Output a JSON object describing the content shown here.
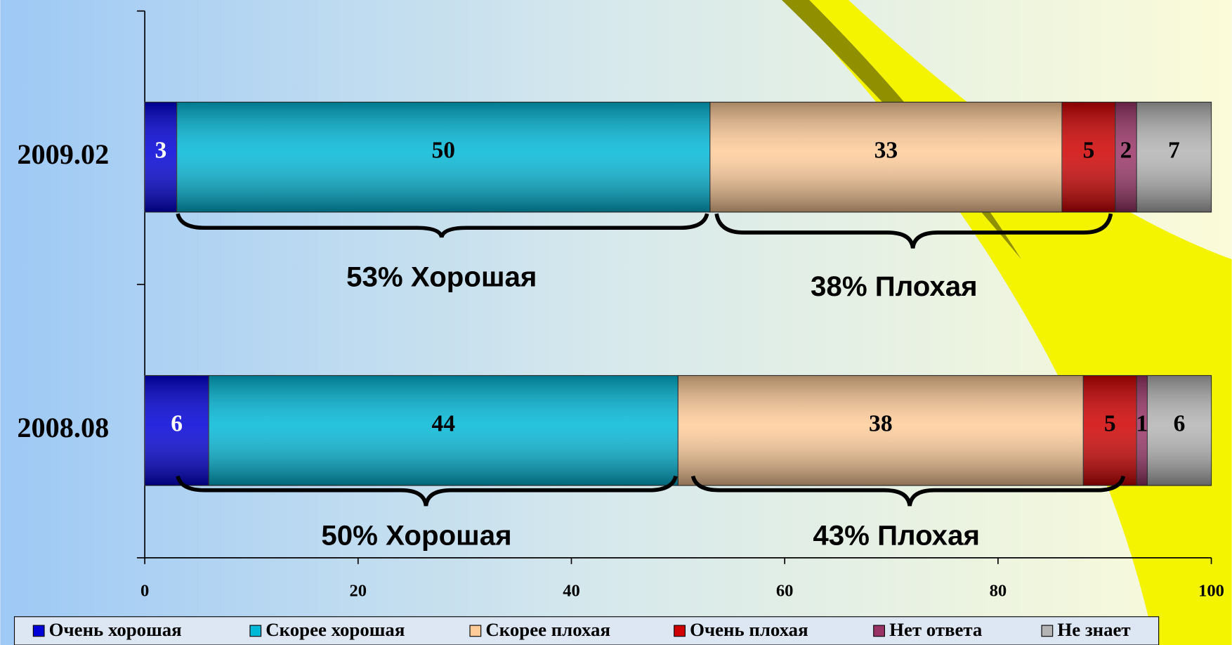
{
  "chart_data": {
    "type": "stacked-bar-horizontal",
    "categories": [
      "2009.02",
      "2008.08"
    ],
    "series": [
      {
        "name": "Очень хорошая",
        "color": "#0000d8",
        "values": [
          3,
          6
        ]
      },
      {
        "name": "Скорее хорошая",
        "color": "#00b8d8",
        "values": [
          50,
          44
        ]
      },
      {
        "name": "Скорее плохая",
        "color": "#ffcc99",
        "values": [
          33,
          38
        ]
      },
      {
        "name": "Очень плохая",
        "color": "#d00000",
        "values": [
          5,
          5
        ]
      },
      {
        "name": "Нет ответа",
        "color": "#993366",
        "values": [
          2,
          1
        ]
      },
      {
        "name": "Не знает",
        "color": "#b4b4b4",
        "values": [
          7,
          6
        ]
      }
    ],
    "annotations": [
      "53% Хорошая",
      "38% Плохая",
      "50% Хорошая",
      "43% Плохая"
    ],
    "xlim": [
      0,
      100
    ],
    "xticks": [
      0,
      20,
      40,
      60,
      80,
      100
    ],
    "legend": "bottom"
  }
}
